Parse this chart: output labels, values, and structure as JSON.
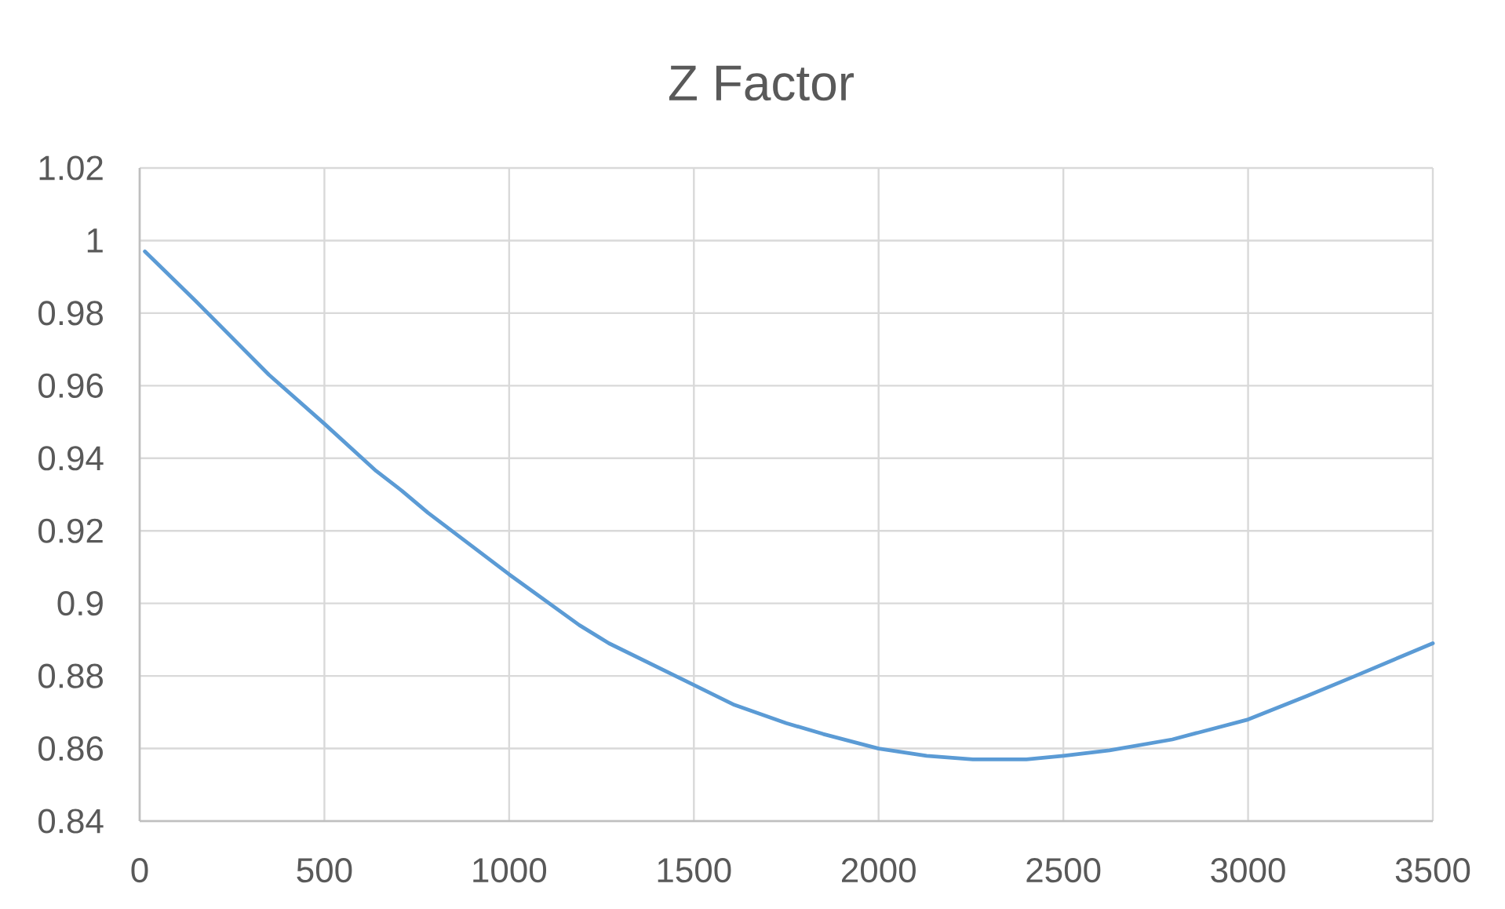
{
  "chart_data": {
    "type": "line",
    "title": "Z Factor",
    "series": [
      {
        "color": "#5b9bd5",
        "x": [
          14,
          150,
          350,
          500,
          640,
          710,
          780,
          1000,
          1190,
          1270,
          1500,
          1610,
          1750,
          1850,
          2000,
          2130,
          2255,
          2400,
          2500,
          2625,
          2795,
          3000,
          3160,
          3290,
          3500
        ],
        "values": [
          0.997,
          0.9835,
          0.963,
          0.9495,
          0.9365,
          0.931,
          0.925,
          0.908,
          0.894,
          0.889,
          0.8775,
          0.872,
          0.867,
          0.864,
          0.86,
          0.858,
          0.857,
          0.857,
          0.858,
          0.8595,
          0.8625,
          0.868,
          0.8745,
          0.88,
          0.889
        ]
      }
    ],
    "xlim": [
      0,
      3500
    ],
    "xticks": [
      0,
      500,
      1000,
      1500,
      2000,
      2500,
      3000,
      3500
    ],
    "ylim": [
      0.84,
      1.02
    ],
    "yticks": [
      0.84,
      0.86,
      0.88,
      0.9,
      0.92,
      0.94,
      0.96,
      0.98,
      1,
      1.02
    ],
    "grid": true,
    "marker": "none",
    "line_style": "solid"
  }
}
